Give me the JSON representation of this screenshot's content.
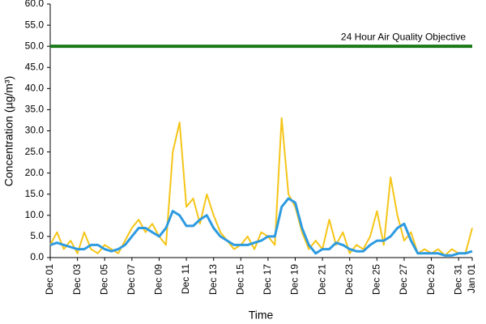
{
  "chart_data": {
    "type": "line",
    "xlabel": "Time",
    "ylabel": "Concentration (µg/m³)",
    "x": [
      0,
      0.5,
      1,
      1.5,
      2,
      2.5,
      3,
      3.5,
      4,
      4.5,
      5,
      5.5,
      6,
      6.5,
      7,
      7.5,
      8,
      8.5,
      9,
      9.5,
      10,
      10.5,
      11,
      11.5,
      12,
      12.5,
      13,
      13.5,
      14,
      14.5,
      15,
      15.5,
      16,
      16.5,
      17,
      17.5,
      18,
      18.5,
      19,
      19.5,
      20,
      20.5,
      21,
      21.5,
      22,
      22.5,
      23,
      23.5,
      24,
      24.5,
      25,
      25.5,
      26,
      26.5,
      27,
      27.5,
      28,
      28.5,
      29,
      29.5,
      30,
      30.5,
      31
    ],
    "series": [
      {
        "color": "#f5c518",
        "values": [
          3,
          6,
          2,
          4,
          1,
          6,
          2,
          1,
          3,
          2,
          1,
          4,
          7,
          9,
          6,
          8,
          5,
          3,
          25,
          32,
          12,
          14,
          8,
          15,
          10,
          6,
          4,
          2,
          3,
          5,
          2,
          6,
          5,
          3,
          33,
          15,
          12,
          6,
          2,
          4,
          2,
          9,
          3,
          6,
          1,
          3,
          2,
          5,
          11,
          3,
          19,
          10,
          4,
          6,
          1,
          2,
          1,
          2,
          0.5,
          2,
          1,
          1,
          7
        ]
      },
      {
        "color": "#2e9be0",
        "values": [
          3,
          3.5,
          3,
          2.5,
          2,
          2,
          3,
          3,
          2,
          1.5,
          2,
          3,
          5,
          7,
          7,
          6,
          5,
          7,
          11,
          10,
          7.5,
          7.5,
          9,
          10,
          7,
          5,
          4,
          3,
          3,
          3,
          3.5,
          4,
          5,
          5,
          12,
          14,
          13,
          7,
          3,
          1,
          2,
          2,
          3.5,
          3,
          2,
          1.5,
          1.5,
          3,
          4,
          4,
          5,
          7,
          8,
          4,
          1,
          1,
          1,
          1,
          0.5,
          0.5,
          1,
          1,
          1.5
        ]
      }
    ],
    "reference_line": {
      "value": 50,
      "label": "24 Hour Air Quality Objective",
      "color": "#1a7a1a"
    },
    "xlim": [
      0,
      31
    ],
    "xticks": [
      {
        "value": 0,
        "label": "Dec 01"
      },
      {
        "value": 2,
        "label": "Dec 03"
      },
      {
        "value": 4,
        "label": "Dec 05"
      },
      {
        "value": 6,
        "label": "Dec 07"
      },
      {
        "value": 8,
        "label": "Dec 09"
      },
      {
        "value": 10,
        "label": "Dec 11"
      },
      {
        "value": 12,
        "label": "Dec 13"
      },
      {
        "value": 14,
        "label": "Dec 15"
      },
      {
        "value": 16,
        "label": "Dec 17"
      },
      {
        "value": 18,
        "label": "Dec 19"
      },
      {
        "value": 20,
        "label": "Dec 21"
      },
      {
        "value": 22,
        "label": "Dec 23"
      },
      {
        "value": 24,
        "label": "Dec 25"
      },
      {
        "value": 26,
        "label": "Dec 27"
      },
      {
        "value": 28,
        "label": "Dec 29"
      },
      {
        "value": 30,
        "label": "Dec 31"
      },
      {
        "value": 31,
        "label": "Jan 01"
      }
    ],
    "ylim": [
      0,
      60
    ],
    "yticks": [
      {
        "value": 0,
        "label": "0.0"
      },
      {
        "value": 5,
        "label": "5.0"
      },
      {
        "value": 10,
        "label": "10.0"
      },
      {
        "value": 15,
        "label": "15.0"
      },
      {
        "value": 20,
        "label": "20.0"
      },
      {
        "value": 25,
        "label": "25.0"
      },
      {
        "value": 30,
        "label": "30.0"
      },
      {
        "value": 35,
        "label": "35.0"
      },
      {
        "value": 40,
        "label": "40.0"
      },
      {
        "value": 45,
        "label": "45.0"
      },
      {
        "value": 50,
        "label": "50.0"
      },
      {
        "value": 55,
        "label": "55.0"
      },
      {
        "value": 60,
        "label": "60.0"
      }
    ]
  }
}
